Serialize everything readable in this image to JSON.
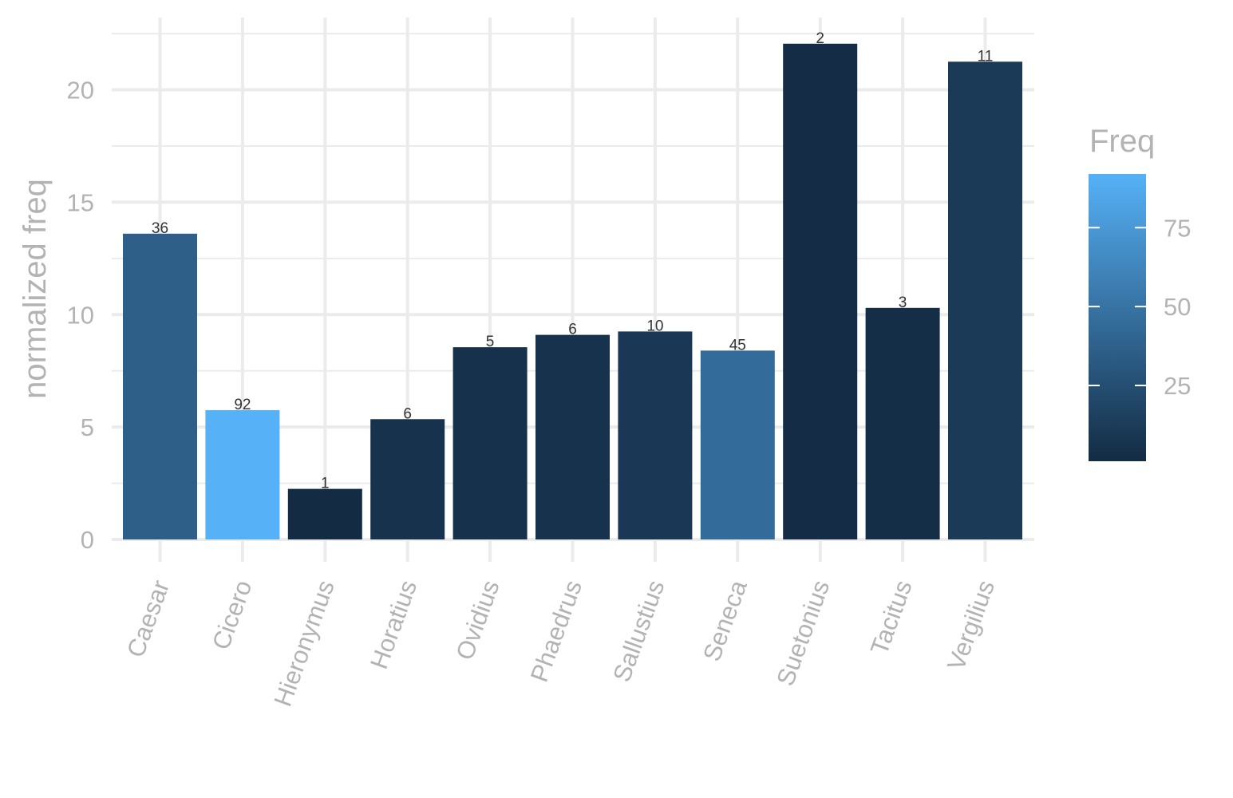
{
  "chart_data": {
    "type": "bar",
    "title": "",
    "xlabel": "",
    "ylabel": "normalized freq",
    "ylim": [
      0,
      23
    ],
    "yticks": [
      0,
      5,
      10,
      15,
      20
    ],
    "grid": true,
    "legend_position": "right",
    "categories": [
      "Caesar",
      "Cicero",
      "Hieronymus",
      "Horatius",
      "Ovidius",
      "Phaedrus",
      "Sallustius",
      "Seneca",
      "Suetonius",
      "Tacitus",
      "Vergilius"
    ],
    "series": [
      {
        "values": [
          13.6,
          5.75,
          2.25,
          5.35,
          8.55,
          9.1,
          9.25,
          8.4,
          22.05,
          10.3,
          21.25
        ],
        "freq": [
          36,
          92,
          1,
          6,
          5,
          6,
          10,
          45,
          2,
          3,
          11
        ],
        "data_labels": [
          "36",
          "92",
          "1",
          "6",
          "5",
          "6",
          "10",
          "45",
          "2",
          "3",
          "11"
        ]
      }
    ],
    "color_legend": {
      "title": "Freq",
      "ticks": [
        25,
        50,
        75
      ],
      "tick_labels": [
        "25",
        "50",
        "75"
      ],
      "range": [
        1,
        92
      ],
      "low_color": "#132b43",
      "high_color": "#56b1f7"
    }
  }
}
